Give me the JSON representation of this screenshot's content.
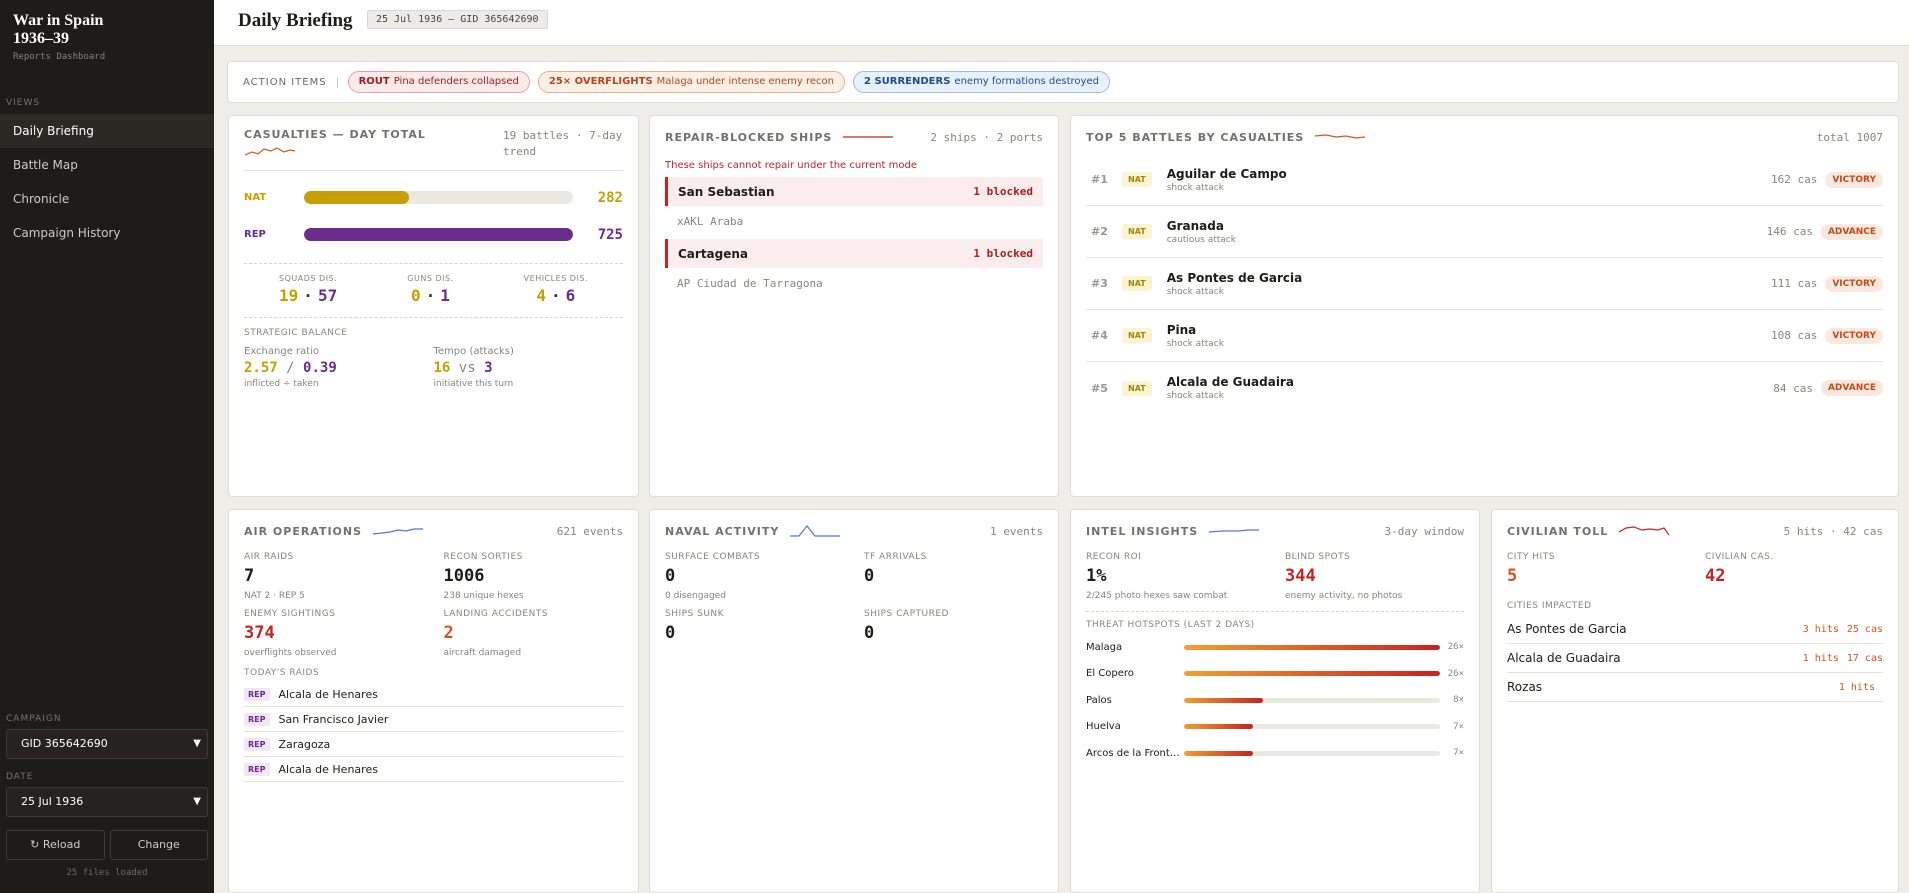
{
  "sidebar": {
    "title_line1": "War in Spain",
    "title_line2": "1936–39",
    "subtitle": "Reports Dashboard",
    "views_label": "VIEWS",
    "items": [
      {
        "label": "Daily Briefing"
      },
      {
        "label": "Battle Map"
      },
      {
        "label": "Chronicle"
      },
      {
        "label": "Campaign History"
      }
    ],
    "campaign_label": "CAMPAIGN",
    "campaign_value": "GID 365642690",
    "date_label": "DATE",
    "date_value": "25 Jul 1936",
    "reload_label": "↻ Reload",
    "change_label": "Change",
    "files_loaded": "25 files loaded"
  },
  "header": {
    "title": "Daily Briefing",
    "chip": "25 Jul 1936 — GID 365642690"
  },
  "actions": {
    "label": "ACTION ITEMS",
    "items": [
      {
        "tag": "ROUT",
        "text": "Pina defenders collapsed"
      },
      {
        "tag": "25× OVERFLIGHTS",
        "text": "Malaga under intense enemy recon"
      },
      {
        "tag": "2 SURRENDERS",
        "text": "enemy formations destroyed"
      }
    ]
  },
  "casualties": {
    "title": "CASUALTIES — DAY TOTAL",
    "meta_line1": "19 battles · 7-day",
    "meta_line2": "trend",
    "nat_label": "NAT",
    "nat_value": "282",
    "nat_fraction": 0.39,
    "rep_label": "REP",
    "rep_value": "725",
    "rep_fraction": 1.0,
    "squads_label": "SQUADS DIS.",
    "squads_nat": "19",
    "squads_rep": "57",
    "guns_label": "GUNS DIS.",
    "guns_nat": "0",
    "guns_rep": "1",
    "vehicles_label": "VEHICLES DIS.",
    "vehicles_nat": "4",
    "vehicles_rep": "6",
    "balance_label": "STRATEGIC BALANCE",
    "exchange_label": "Exchange ratio",
    "exchange_nat": "2.57",
    "exchange_rep": "0.39",
    "exchange_note": "inflicted ÷ taken",
    "tempo_label": "Tempo (attacks)",
    "tempo_nat": "16",
    "tempo_vs": "vs",
    "tempo_rep": "3",
    "tempo_note": "initiative this turn"
  },
  "ships": {
    "title": "REPAIR-BLOCKED SHIPS",
    "meta": "2 ships · 2 ports",
    "warning": "These ships cannot repair under the current mode",
    "items": [
      {
        "name": "San Sebastian",
        "status": "1 blocked",
        "sub": "xAKL Araba"
      },
      {
        "name": "Cartagena",
        "status": "1 blocked",
        "sub": "AP Ciudad de Tarragona"
      }
    ]
  },
  "battles": {
    "title": "TOP 5 BATTLES BY CASUALTIES",
    "meta": "total 1007",
    "items": [
      {
        "rank": "#1",
        "side": "NAT",
        "name": "Aguilar de Campo",
        "type": "shock attack",
        "cas": "162 cas",
        "result": "VICTORY"
      },
      {
        "rank": "#2",
        "side": "NAT",
        "name": "Granada",
        "type": "cautious attack",
        "cas": "146 cas",
        "result": "ADVANCE"
      },
      {
        "rank": "#3",
        "side": "NAT",
        "name": "As Pontes de Garcia",
        "type": "shock attack",
        "cas": "111 cas",
        "result": "VICTORY"
      },
      {
        "rank": "#4",
        "side": "NAT",
        "name": "Pina",
        "type": "shock attack",
        "cas": "108 cas",
        "result": "VICTORY"
      },
      {
        "rank": "#5",
        "side": "NAT",
        "name": "Alcala de Guadaira",
        "type": "shock attack",
        "cas": "84 cas",
        "result": "ADVANCE"
      }
    ]
  },
  "air": {
    "title": "AIR OPERATIONS",
    "meta": "621 events",
    "raids_label": "AIR RAIDS",
    "raids_value": "7",
    "raids_note": "NAT 2 · REP 5",
    "recon_label": "RECON SORTIES",
    "recon_value": "1006",
    "recon_note": "238 unique hexes",
    "sightings_label": "ENEMY SIGHTINGS",
    "sightings_value": "374",
    "sightings_note": "overflights observed",
    "accidents_label": "LANDING ACCIDENTS",
    "accidents_value": "2",
    "accidents_note": "aircraft damaged",
    "raids_list_label": "TODAY'S RAIDS",
    "raids_list": [
      {
        "side": "REP",
        "place": "Alcala de Henares"
      },
      {
        "side": "REP",
        "place": "San Francisco Javier"
      },
      {
        "side": "REP",
        "place": "Zaragoza"
      },
      {
        "side": "REP",
        "place": "Alcala de Henares"
      }
    ]
  },
  "naval": {
    "title": "NAVAL ACTIVITY",
    "meta": "1 events",
    "surface_label": "SURFACE COMBATS",
    "surface_value": "0",
    "surface_note": "0 disengaged",
    "tf_label": "TF ARRIVALS",
    "tf_value": "0",
    "sunk_label": "SHIPS SUNK",
    "sunk_value": "0",
    "captured_label": "SHIPS CAPTURED",
    "captured_value": "0"
  },
  "intel": {
    "title": "INTEL INSIGHTS",
    "meta": "3-day window",
    "roi_label": "RECON ROI",
    "roi_value": "1%",
    "roi_note": "2/245 photo hexes saw combat",
    "blind_label": "BLIND SPOTS",
    "blind_value": "344",
    "blind_note": "enemy activity, no photos",
    "hotspots_label": "THREAT HOTSPOTS (LAST 2 DAYS)",
    "hotspots": [
      {
        "name": "Malaga",
        "count": "26×",
        "value": 26
      },
      {
        "name": "El Copero",
        "count": "26×",
        "value": 26
      },
      {
        "name": "Palos",
        "count": "8×",
        "value": 8
      },
      {
        "name": "Huelva",
        "count": "7×",
        "value": 7
      },
      {
        "name": "Arcos de la Front…",
        "count": "7×",
        "value": 7
      }
    ],
    "hotspots_max": 26
  },
  "civilian": {
    "title": "CIVILIAN TOLL",
    "meta": "5 hits · 42 cas",
    "city_hits_label": "CITY HITS",
    "city_hits_value": "5",
    "civ_cas_label": "CIVILIAN CAS.",
    "civ_cas_value": "42",
    "impacted_label": "CITIES IMPACTED",
    "cities": [
      {
        "name": "As Pontes de Garcia",
        "hits": "3 hits",
        "cas": "25 cas"
      },
      {
        "name": "Alcala de Guadaira",
        "hits": "1 hits",
        "cas": "17 cas"
      },
      {
        "name": "Rozas",
        "hits": "1 hits",
        "cas": ""
      }
    ]
  },
  "colors": {
    "nat": "#c5a000",
    "rep": "#6b2d8e",
    "alert": "#c62222"
  }
}
